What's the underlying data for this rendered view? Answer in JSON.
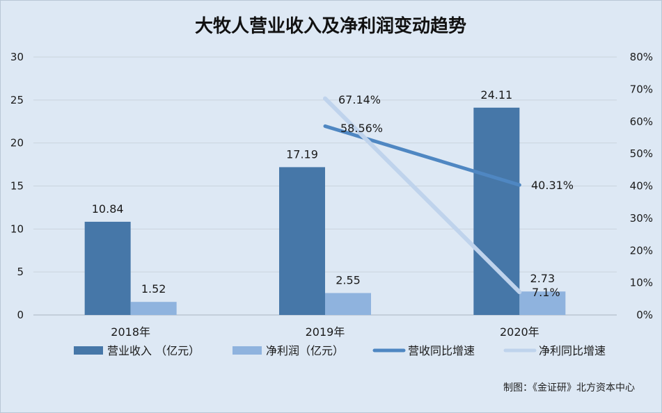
{
  "chart_data": {
    "type": "bar",
    "title": "大牧人营业收入及净利润变动趋势",
    "categories": [
      "2018年",
      "2019年",
      "2020年"
    ],
    "left_axis": {
      "min": 0,
      "max": 30,
      "ticks": [
        "0",
        "5",
        "10",
        "15",
        "20",
        "25",
        "30"
      ]
    },
    "right_axis": {
      "min": 0,
      "max": 80,
      "ticks": [
        "0%",
        "10%",
        "20%",
        "30%",
        "40%",
        "50%",
        "60%",
        "70%",
        "80%"
      ]
    },
    "grid": true,
    "legend_position": "bottom",
    "series": [
      {
        "name": "营业收入 （亿元）",
        "kind": "bar",
        "axis": "left",
        "color": "#4677a8",
        "values": [
          10.84,
          17.19,
          24.11
        ],
        "labels": [
          "10.84",
          "17.19",
          "24.11"
        ]
      },
      {
        "name": "净利润（亿元）",
        "kind": "bar",
        "axis": "left",
        "color": "#8fb3de",
        "values": [
          1.52,
          2.55,
          2.73
        ],
        "labels": [
          "1.52",
          "2.55",
          "2.73"
        ]
      },
      {
        "name": "营收同比增速",
        "kind": "line",
        "axis": "right",
        "color": "#4f87c2",
        "values": [
          null,
          58.56,
          40.31
        ],
        "labels": [
          "",
          "58.56%",
          "40.31%"
        ]
      },
      {
        "name": "净利同比增速",
        "kind": "line",
        "axis": "right",
        "color": "#bfd3ec",
        "values": [
          null,
          67.14,
          7.1
        ],
        "labels": [
          "",
          "67.14%",
          "7.1%"
        ]
      }
    ],
    "source": "制图：《金证研》北方资本中心"
  }
}
